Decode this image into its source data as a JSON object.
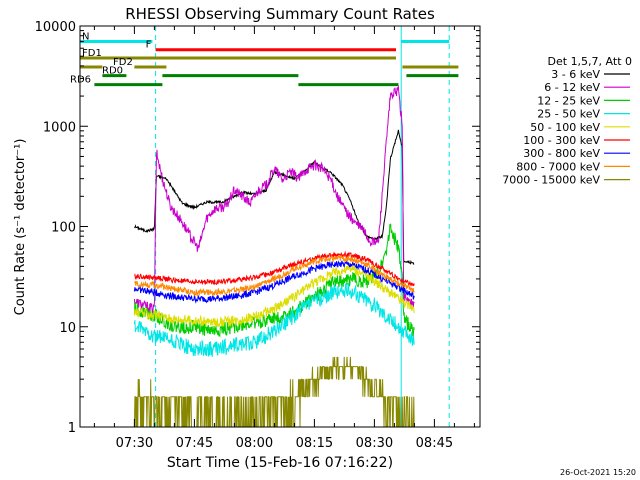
{
  "chart_data": {
    "type": "line",
    "title": "RHESSI Observing Summary Count Rates",
    "xlabel": "Start Time (15-Feb-16 07:16:22)",
    "ylabel": "Count Rate (s⁻¹ detector⁻¹)",
    "ylog": true,
    "ylim": [
      1,
      10000
    ],
    "xlim_min": [
      16.4,
      116.4
    ],
    "x_ticks": [
      {
        "t": 30,
        "label": "07:30"
      },
      {
        "t": 45,
        "label": "07:45"
      },
      {
        "t": 60,
        "label": "08:00"
      },
      {
        "t": 75,
        "label": "08:15"
      },
      {
        "t": 90,
        "label": "08:30"
      },
      {
        "t": 105,
        "label": "08:45"
      }
    ],
    "y_ticks": [
      {
        "v": 1,
        "label": "1"
      },
      {
        "v": 10,
        "label": "10"
      },
      {
        "v": 100,
        "label": "100"
      },
      {
        "v": 1000,
        "label": "1000"
      },
      {
        "v": 10000,
        "label": "10000"
      }
    ],
    "legend_title": "Det 1,5,7, Att 0",
    "legend_placement": "right",
    "series": [
      {
        "name": "3 - 6 keV",
        "color": "#000000",
        "points": [
          [
            30,
            100
          ],
          [
            33,
            90
          ],
          [
            35,
            95
          ],
          [
            35.5,
            320
          ],
          [
            38,
            300
          ],
          [
            42,
            170
          ],
          [
            45,
            155
          ],
          [
            48,
            175
          ],
          [
            52,
            175
          ],
          [
            55,
            200
          ],
          [
            57,
            220
          ],
          [
            60,
            210
          ],
          [
            63,
            230
          ],
          [
            65,
            350
          ],
          [
            67,
            330
          ],
          [
            70,
            300
          ],
          [
            73,
            370
          ],
          [
            75,
            440
          ],
          [
            77,
            380
          ],
          [
            79,
            350
          ],
          [
            82,
            260
          ],
          [
            84,
            180
          ],
          [
            86,
            110
          ],
          [
            88,
            80
          ],
          [
            90,
            75
          ],
          [
            92,
            80
          ],
          [
            93,
            160
          ],
          [
            94,
            480
          ],
          [
            96,
            900
          ],
          [
            97,
            600
          ],
          [
            97.3,
            45
          ],
          [
            100,
            43
          ]
        ]
      },
      {
        "name": "6 - 12 keV",
        "color": "#cc00cc",
        "points": [
          [
            30,
            18
          ],
          [
            33,
            16
          ],
          [
            35,
            15
          ],
          [
            35.5,
            550
          ],
          [
            37,
            300
          ],
          [
            39,
            160
          ],
          [
            42,
            110
          ],
          [
            44,
            80
          ],
          [
            46,
            60
          ],
          [
            48,
            120
          ],
          [
            50,
            150
          ],
          [
            53,
            160
          ],
          [
            55,
            230
          ],
          [
            57,
            200
          ],
          [
            59,
            170
          ],
          [
            61,
            230
          ],
          [
            63,
            260
          ],
          [
            65,
            380
          ],
          [
            67,
            290
          ],
          [
            69,
            350
          ],
          [
            71,
            300
          ],
          [
            73,
            370
          ],
          [
            75,
            410
          ],
          [
            77,
            380
          ],
          [
            79,
            300
          ],
          [
            81,
            190
          ],
          [
            83,
            140
          ],
          [
            85,
            110
          ],
          [
            87,
            95
          ],
          [
            89,
            70
          ],
          [
            91,
            70
          ],
          [
            93,
            700
          ],
          [
            94,
            2000
          ],
          [
            96,
            2300
          ],
          [
            97,
            1000
          ],
          [
            97.3,
            20
          ],
          [
            100,
            16
          ]
        ]
      },
      {
        "name": "12 - 25 keV",
        "color": "#00cc00",
        "points": [
          [
            30,
            15
          ],
          [
            33,
            14
          ],
          [
            35,
            13
          ],
          [
            40,
            10
          ],
          [
            45,
            10
          ],
          [
            50,
            9
          ],
          [
            55,
            10
          ],
          [
            60,
            11
          ],
          [
            65,
            12
          ],
          [
            70,
            14
          ],
          [
            75,
            20
          ],
          [
            80,
            28
          ],
          [
            85,
            30
          ],
          [
            88,
            28
          ],
          [
            91,
            35
          ],
          [
            93,
            60
          ],
          [
            94,
            100
          ],
          [
            96,
            60
          ],
          [
            97,
            30
          ],
          [
            97.3,
            12
          ],
          [
            100,
            9
          ]
        ]
      },
      {
        "name": "25 - 50 keV",
        "color": "#00e5e5",
        "points": [
          [
            30,
            10
          ],
          [
            33,
            9
          ],
          [
            35,
            8
          ],
          [
            40,
            7
          ],
          [
            45,
            6
          ],
          [
            50,
            6
          ],
          [
            55,
            6.5
          ],
          [
            60,
            7
          ],
          [
            65,
            9
          ],
          [
            70,
            13
          ],
          [
            75,
            18
          ],
          [
            80,
            22
          ],
          [
            84,
            23
          ],
          [
            88,
            19
          ],
          [
            92,
            14
          ],
          [
            96,
            10
          ],
          [
            100,
            7
          ]
        ]
      },
      {
        "name": "50 - 100 keV",
        "color": "#dddd00",
        "points": [
          [
            30,
            14
          ],
          [
            35,
            13
          ],
          [
            40,
            12
          ],
          [
            45,
            11.5
          ],
          [
            50,
            11
          ],
          [
            55,
            11.5
          ],
          [
            60,
            12.5
          ],
          [
            65,
            15
          ],
          [
            70,
            20
          ],
          [
            75,
            28
          ],
          [
            80,
            35
          ],
          [
            84,
            38
          ],
          [
            88,
            33
          ],
          [
            92,
            25
          ],
          [
            96,
            19
          ],
          [
            100,
            15
          ]
        ]
      },
      {
        "name": "100 - 300 keV",
        "color": "#ff0000",
        "points": [
          [
            30,
            32
          ],
          [
            35,
            31
          ],
          [
            40,
            29
          ],
          [
            45,
            28
          ],
          [
            50,
            28
          ],
          [
            55,
            29
          ],
          [
            60,
            31
          ],
          [
            65,
            35
          ],
          [
            70,
            42
          ],
          [
            75,
            48
          ],
          [
            80,
            52
          ],
          [
            84,
            52
          ],
          [
            88,
            47
          ],
          [
            92,
            38
          ],
          [
            96,
            30
          ],
          [
            100,
            26
          ]
        ]
      },
      {
        "name": "300 - 800 keV",
        "color": "#0000ff",
        "points": [
          [
            30,
            24
          ],
          [
            35,
            22
          ],
          [
            40,
            20
          ],
          [
            45,
            19
          ],
          [
            50,
            19
          ],
          [
            55,
            20
          ],
          [
            60,
            22
          ],
          [
            65,
            26
          ],
          [
            70,
            32
          ],
          [
            75,
            38
          ],
          [
            80,
            42
          ],
          [
            84,
            42
          ],
          [
            88,
            37
          ],
          [
            92,
            30
          ],
          [
            96,
            25
          ],
          [
            100,
            20
          ]
        ]
      },
      {
        "name": "800 - 7000 keV",
        "color": "#ff8800",
        "points": [
          [
            30,
            27
          ],
          [
            35,
            26
          ],
          [
            40,
            24
          ],
          [
            45,
            22
          ],
          [
            50,
            22
          ],
          [
            55,
            23
          ],
          [
            60,
            25
          ],
          [
            65,
            30
          ],
          [
            70,
            38
          ],
          [
            75,
            45
          ],
          [
            80,
            48
          ],
          [
            84,
            48
          ],
          [
            88,
            42
          ],
          [
            92,
            33
          ],
          [
            96,
            27
          ],
          [
            100,
            23
          ]
        ]
      },
      {
        "name": "7000 - 15000 keV",
        "color": "#888800",
        "points": [
          [
            30,
            2
          ],
          [
            35,
            1.8
          ],
          [
            40,
            1.6
          ],
          [
            45,
            1.4
          ],
          [
            50,
            1.3
          ],
          [
            55,
            1.3
          ],
          [
            60,
            1.3
          ],
          [
            65,
            1.5
          ],
          [
            70,
            2
          ],
          [
            75,
            3
          ],
          [
            80,
            4
          ],
          [
            84,
            4
          ],
          [
            88,
            3
          ],
          [
            92,
            2
          ],
          [
            96,
            1.5
          ],
          [
            100,
            1.2
          ]
        ]
      }
    ],
    "flags": [
      {
        "label": "N",
        "color": "#00e5e5",
        "level": 7000,
        "segments": [
          [
            16.4,
            34.5
          ],
          [
            96.7,
            108.7
          ]
        ]
      },
      {
        "label": "F",
        "color": "#ff0000",
        "level": 5800,
        "segments": [
          [
            35.3,
            95.4
          ]
        ]
      },
      {
        "label": "FD1",
        "color": "#888800",
        "level": 4800,
        "segments": [
          [
            16.4,
            95.4
          ]
        ]
      },
      {
        "label": "FD2",
        "color": "#888800",
        "level": 3900,
        "segments": [
          [
            16.4,
            22
          ],
          [
            30,
            38
          ],
          [
            97,
            111
          ]
        ]
      },
      {
        "label": "RD0",
        "color": "#008000",
        "level": 3200,
        "segments": [
          [
            22,
            28
          ],
          [
            37,
            71
          ],
          [
            98,
            111
          ]
        ]
      },
      {
        "label": "RD6",
        "color": "#008000",
        "level": 2600,
        "segments": [
          [
            20,
            37
          ],
          [
            71,
            96
          ]
        ]
      }
    ],
    "vlines": [
      {
        "t": 16.4,
        "color": "#00e5e5",
        "style": "solid"
      },
      {
        "t": 35.3,
        "color": "#00e5e5",
        "style": "dashed"
      },
      {
        "t": 96.7,
        "color": "#00e5e5",
        "style": "solid"
      },
      {
        "t": 108.7,
        "color": "#00e5e5",
        "style": "dashed"
      }
    ],
    "timestamp": "26-Oct-2021 15:20"
  }
}
